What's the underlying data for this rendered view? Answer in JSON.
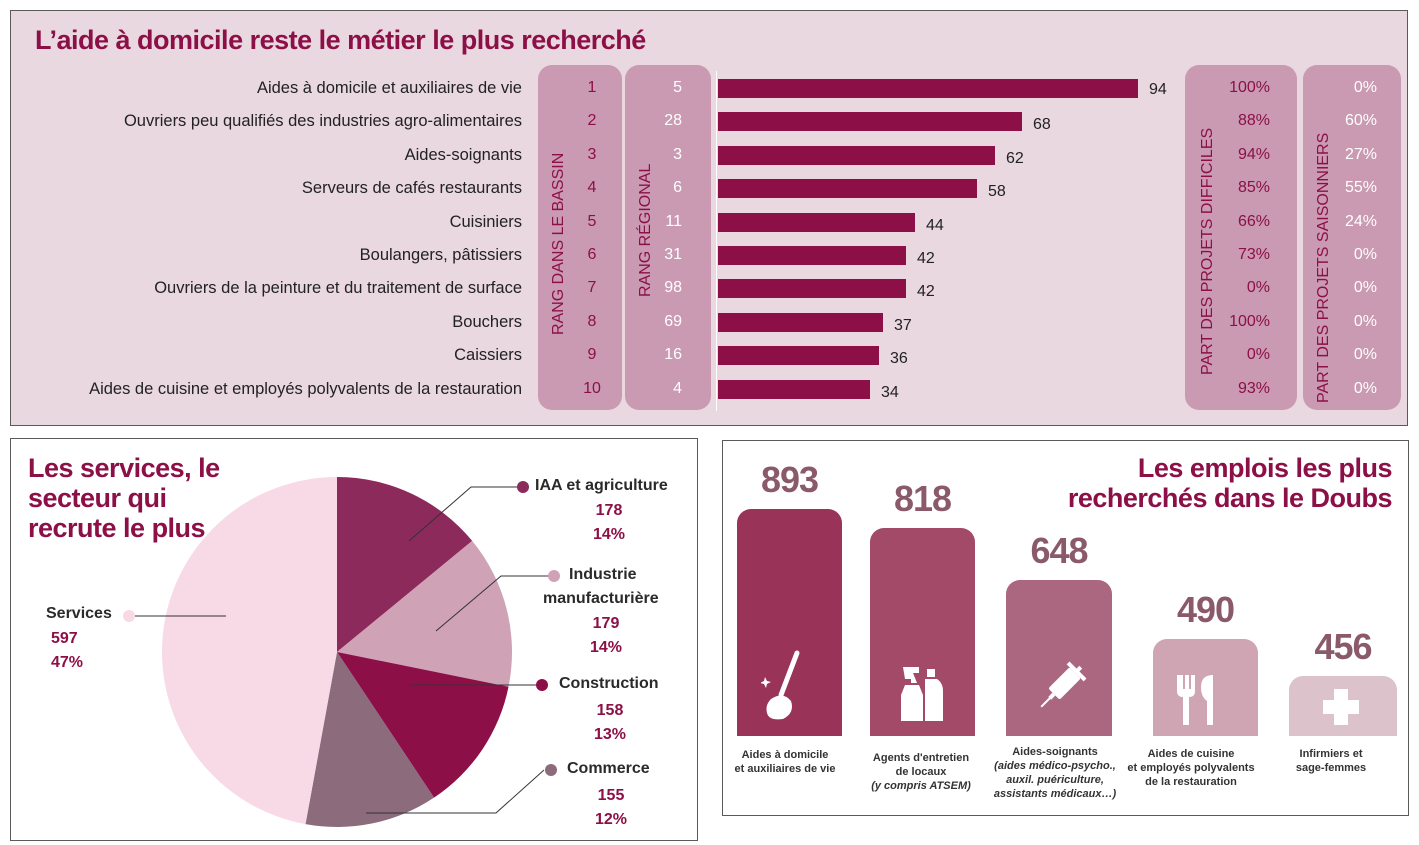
{
  "top": {
    "title": "L’aide à domicile reste le métier le plus recherché",
    "col_rank_bassin": "RANG DANS LE BASSIN",
    "col_rank_regional": "RANG RÉGIONAL",
    "col_difficiles": "PART DES PROJETS DIFFICILES",
    "col_saisonniers": "PART DES PROJETS SAISONNIERS"
  },
  "chart_data": [
    {
      "type": "bar",
      "title": "L’aide à domicile reste le métier le plus recherché",
      "orientation": "horizontal",
      "categories": [
        "Aides à domicile et auxiliaires de vie",
        "Ouvriers peu qualifiés des industries agro-alimentaires",
        "Aides-soignants",
        "Serveurs de cafés restaurants",
        "Cuisiniers",
        "Boulangers, pâtissiers",
        "Ouvriers de la peinture et du traitement de surface",
        "Bouchers",
        "Caissiers",
        "Aides de cuisine et employés polyvalents de la restauration"
      ],
      "values": [
        94,
        68,
        62,
        58,
        44,
        42,
        42,
        37,
        36,
        34
      ],
      "rank_bassin": [
        "1",
        "2",
        "3",
        "4",
        "5",
        "6",
        "7",
        "8",
        "9",
        "10"
      ],
      "rank_regional": [
        "5",
        "28",
        "3",
        "6",
        "11",
        "31",
        "98",
        "69",
        "16",
        "4"
      ],
      "part_difficiles": [
        "100%",
        "88%",
        "94%",
        "85%",
        "66%",
        "73%",
        "0%",
        "100%",
        "0%",
        "93%"
      ],
      "part_saisonniers": [
        "0%",
        "60%",
        "27%",
        "55%",
        "24%",
        "0%",
        "0%",
        "0%",
        "0%",
        "0%"
      ],
      "xlim": [
        0,
        94
      ],
      "color": "#8c1047"
    },
    {
      "type": "pie",
      "title": "Les services, le secteur qui recrute le plus",
      "slices": [
        {
          "name": "IAA et agriculture",
          "value": 178,
          "pct": "14%",
          "color": "#8c2a5c"
        },
        {
          "name": "Industrie manufacturière",
          "value": 179,
          "pct": "14%",
          "color": "#cfa2b6"
        },
        {
          "name": "Construction",
          "value": 158,
          "pct": "13%",
          "color": "#8c1047"
        },
        {
          "name": "Commerce",
          "value": 155,
          "pct": "12%",
          "color": "#8b6b7c"
        },
        {
          "name": "Services",
          "value": 597,
          "pct": "47%",
          "color": "#f8d9e6"
        }
      ]
    },
    {
      "type": "bar",
      "title": "Les emplois les plus recherchés dans le Doubs",
      "categories": [
        "Aides à domicile et auxiliaires de vie",
        "Agents d'entretien de locaux (y compris ATSEM)",
        "Aides-soignants (aides médico-psycho., auxil. puériculture, assistants médicaux…)",
        "Aides de cuisine et employés polyvalents de la restauration",
        "Infirmiers et sage-femmes"
      ],
      "values": [
        893,
        818,
        648,
        490,
        456
      ],
      "colors": [
        "#9a3358",
        "#a24a68",
        "#aa677f",
        "#cfa4b3",
        "#dcc2ca"
      ]
    }
  ],
  "pie": {
    "title": "Les services, le secteur qui recrute le plus",
    "iaa": {
      "name": "IAA et agriculture",
      "value": "178",
      "pct": "14%"
    },
    "industrie": {
      "name1": "Industrie",
      "name2": "manufacturière",
      "value": "179",
      "pct": "14%"
    },
    "construction": {
      "name": "Construction",
      "value": "158",
      "pct": "13%"
    },
    "commerce": {
      "name": "Commerce",
      "value": "155",
      "pct": "12%"
    },
    "services": {
      "name": "Services",
      "value": "597",
      "pct": "47%"
    }
  },
  "doubs": {
    "title_line1": "Les emplois les plus",
    "title_line2": "recherchés dans le Doubs",
    "vals": [
      "893",
      "818",
      "648",
      "490",
      "456"
    ],
    "label1": [
      "Aides à domicile",
      "et auxiliaires de vie"
    ],
    "label2": [
      "Agents d'entretien",
      "de locaux",
      "(y compris ATSEM)"
    ],
    "label3": [
      "Aides-soignants",
      "(aides médico-psycho.,",
      "auxil. puériculture,",
      "assistants médicaux…)"
    ],
    "label4": [
      "Aides de cuisine",
      "et employés polyvalents",
      "de la restauration"
    ],
    "label5": [
      "Infirmiers et",
      "sage-femmes"
    ],
    "icons": [
      "mop-icon",
      "cleaning-spray-icon",
      "syringe-icon",
      "cutlery-icon",
      "medical-cross-icon"
    ]
  }
}
